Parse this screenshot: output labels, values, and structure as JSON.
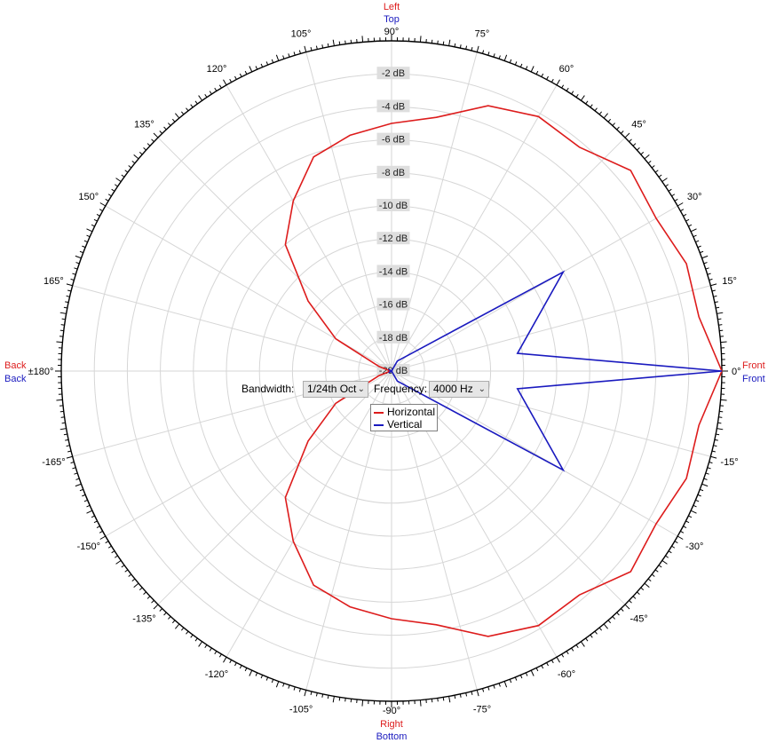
{
  "colors": {
    "horizontal": "#dd1c1c",
    "vertical": "#1a1abf",
    "grid": "#d6d6d6",
    "axis": "#000000"
  },
  "direction_labels": {
    "top_primary": "Left",
    "top_secondary": "Top",
    "bottom_primary": "Right",
    "bottom_secondary": "Bottom",
    "left_primary": "Back",
    "left_secondary": "Back",
    "right_primary": "Front",
    "right_secondary": "Front"
  },
  "controls": {
    "bandwidth_label": "Bandwidth:",
    "bandwidth_value": "1/24th Oct",
    "frequency_label": "Frequency:",
    "frequency_value": "4000 Hz"
  },
  "legend": {
    "horizontal": "Horizontal",
    "vertical": "Vertical"
  },
  "chart_data": {
    "type": "polar",
    "radial_unit": "dB",
    "radial_range": [
      -20,
      0
    ],
    "ring_labels": [
      "-2 dB",
      "-4 dB",
      "-6 dB",
      "-8 dB",
      "-10 dB",
      "-12 dB",
      "-14 dB",
      "-16 dB",
      "-18 dB",
      "-20 dB"
    ],
    "ring_values": [
      -2,
      -4,
      -6,
      -8,
      -10,
      -12,
      -14,
      -16,
      -18,
      -20
    ],
    "angle_labels": [
      "0°",
      "15°",
      "30°",
      "45°",
      "60°",
      "75°",
      "90°",
      "105°",
      "120°",
      "135°",
      "150°",
      "165°",
      "±180°",
      "-165°",
      "-150°",
      "-135°",
      "-120°",
      "-105°",
      "-90°",
      "-75°",
      "-60°",
      "-45°",
      "-30°",
      "-15°"
    ],
    "angle_values": [
      0,
      15,
      30,
      45,
      60,
      75,
      90,
      105,
      120,
      135,
      150,
      165,
      180,
      -165,
      -150,
      -135,
      -120,
      -105,
      -90,
      -75,
      -60,
      -45,
      -30,
      -15
    ],
    "series": [
      {
        "name": "Horizontal",
        "angles": [
          0,
          10,
          20,
          30,
          40,
          50,
          60,
          70,
          80,
          90,
          100,
          110,
          120,
          130,
          140,
          150,
          160,
          170,
          180,
          -170,
          -160,
          -150,
          -140,
          -130,
          -120,
          -110,
          -100,
          -90,
          -80,
          -70,
          -60,
          -50,
          -40,
          -30,
          -20,
          -10
        ],
        "values": [
          0,
          -1.1,
          -1.0,
          -1.5,
          -1.1,
          -2.3,
          -2.2,
          -2.9,
          -4.4,
          -5.0,
          -5.5,
          -6.2,
          -8.1,
          -10.0,
          -13.4,
          -16.1,
          -19.2,
          -19.9,
          -20.0,
          -19.9,
          -19.2,
          -16.1,
          -13.4,
          -10.0,
          -8.1,
          -6.2,
          -5.5,
          -5.0,
          -4.4,
          -2.9,
          -2.2,
          -2.3,
          -1.1,
          -1.5,
          -1.0,
          -1.1
        ]
      },
      {
        "name": "Vertical",
        "angles": [
          0,
          8,
          30,
          60,
          90,
          120,
          150,
          180,
          -150,
          -120,
          -90,
          -60,
          -30,
          -8
        ],
        "values": [
          0,
          -12.3,
          -8.0,
          -19.3,
          -20.0,
          -20.0,
          -19.8,
          -20.0,
          -19.8,
          -20.0,
          -20.0,
          -19.3,
          -8.0,
          -12.3
        ]
      }
    ]
  }
}
